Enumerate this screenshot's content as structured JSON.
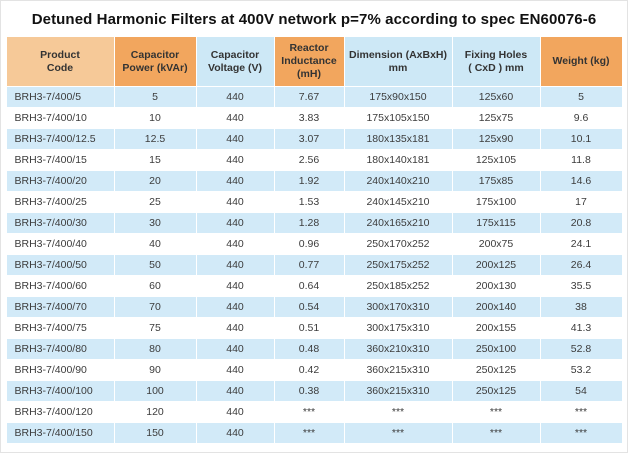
{
  "title": "Detuned Harmonic Filters at 400V network p=7% according to spec EN60076-6",
  "colors": {
    "header-orange": "#f2a65e",
    "header-tan": "#f6c998",
    "header-blue": "#cde8f6",
    "row-blue": "#d2eaf8",
    "title-text": "#111111",
    "cell-text": "#3c3c3c"
  },
  "table": {
    "headers": [
      {
        "text": "Product\nCode",
        "tone": "tan"
      },
      {
        "text": "Capacitor\nPower (kVAr)",
        "tone": "orange"
      },
      {
        "text": "Capacitor\nVoltage   (V)",
        "tone": "blue"
      },
      {
        "text": "Reactor\nInductance\n(mH)",
        "tone": "orange"
      },
      {
        "text": "Dimension (AxBxH)\nmm",
        "tone": "blue"
      },
      {
        "text": "Fixing Holes\n( CxD ) mm",
        "tone": "blue"
      },
      {
        "text": "Weight (kg)",
        "tone": "orange"
      }
    ],
    "rows": [
      [
        "BRH3-7/400/5",
        "5",
        "440",
        "7.67",
        "175x90x150",
        "125x60",
        "5"
      ],
      [
        "BRH3-7/400/10",
        "10",
        "440",
        "3.83",
        "175x105x150",
        "125x75",
        "9.6"
      ],
      [
        "BRH3-7/400/12.5",
        "12.5",
        "440",
        "3.07",
        "180x135x181",
        "125x90",
        "10.1"
      ],
      [
        "BRH3-7/400/15",
        "15",
        "440",
        "2.56",
        "180x140x181",
        "125x105",
        "11.8"
      ],
      [
        "BRH3-7/400/20",
        "20",
        "440",
        "1.92",
        "240x140x210",
        "175x85",
        "14.6"
      ],
      [
        "BRH3-7/400/25",
        "25",
        "440",
        "1.53",
        "240x145x210",
        "175x100",
        "17"
      ],
      [
        "BRH3-7/400/30",
        "30",
        "440",
        "1.28",
        "240x165x210",
        "175x115",
        "20.8"
      ],
      [
        "BRH3-7/400/40",
        "40",
        "440",
        "0.96",
        "250x170x252",
        "200x75",
        "24.1"
      ],
      [
        "BRH3-7/400/50",
        "50",
        "440",
        "0.77",
        "250x175x252",
        "200x125",
        "26.4"
      ],
      [
        "BRH3-7/400/60",
        "60",
        "440",
        "0.64",
        "250x185x252",
        "200x130",
        "35.5"
      ],
      [
        "BRH3-7/400/70",
        "70",
        "440",
        "0.54",
        "300x170x310",
        "200x140",
        "38"
      ],
      [
        "BRH3-7/400/75",
        "75",
        "440",
        "0.51",
        "300x175x310",
        "200x155",
        "41.3"
      ],
      [
        "BRH3-7/400/80",
        "80",
        "440",
        "0.48",
        "360x210x310",
        "250x100",
        "52.8"
      ],
      [
        "BRH3-7/400/90",
        "90",
        "440",
        "0.42",
        "360x215x310",
        "250x125",
        "53.2"
      ],
      [
        "BRH3-7/400/100",
        "100",
        "440",
        "0.38",
        "360x215x310",
        "250x125",
        "54"
      ],
      [
        "BRH3-7/400/120",
        "120",
        "440",
        "***",
        "***",
        "***",
        "***"
      ],
      [
        "BRH3-7/400/150",
        "150",
        "440",
        "***",
        "***",
        "***",
        "***"
      ]
    ]
  }
}
